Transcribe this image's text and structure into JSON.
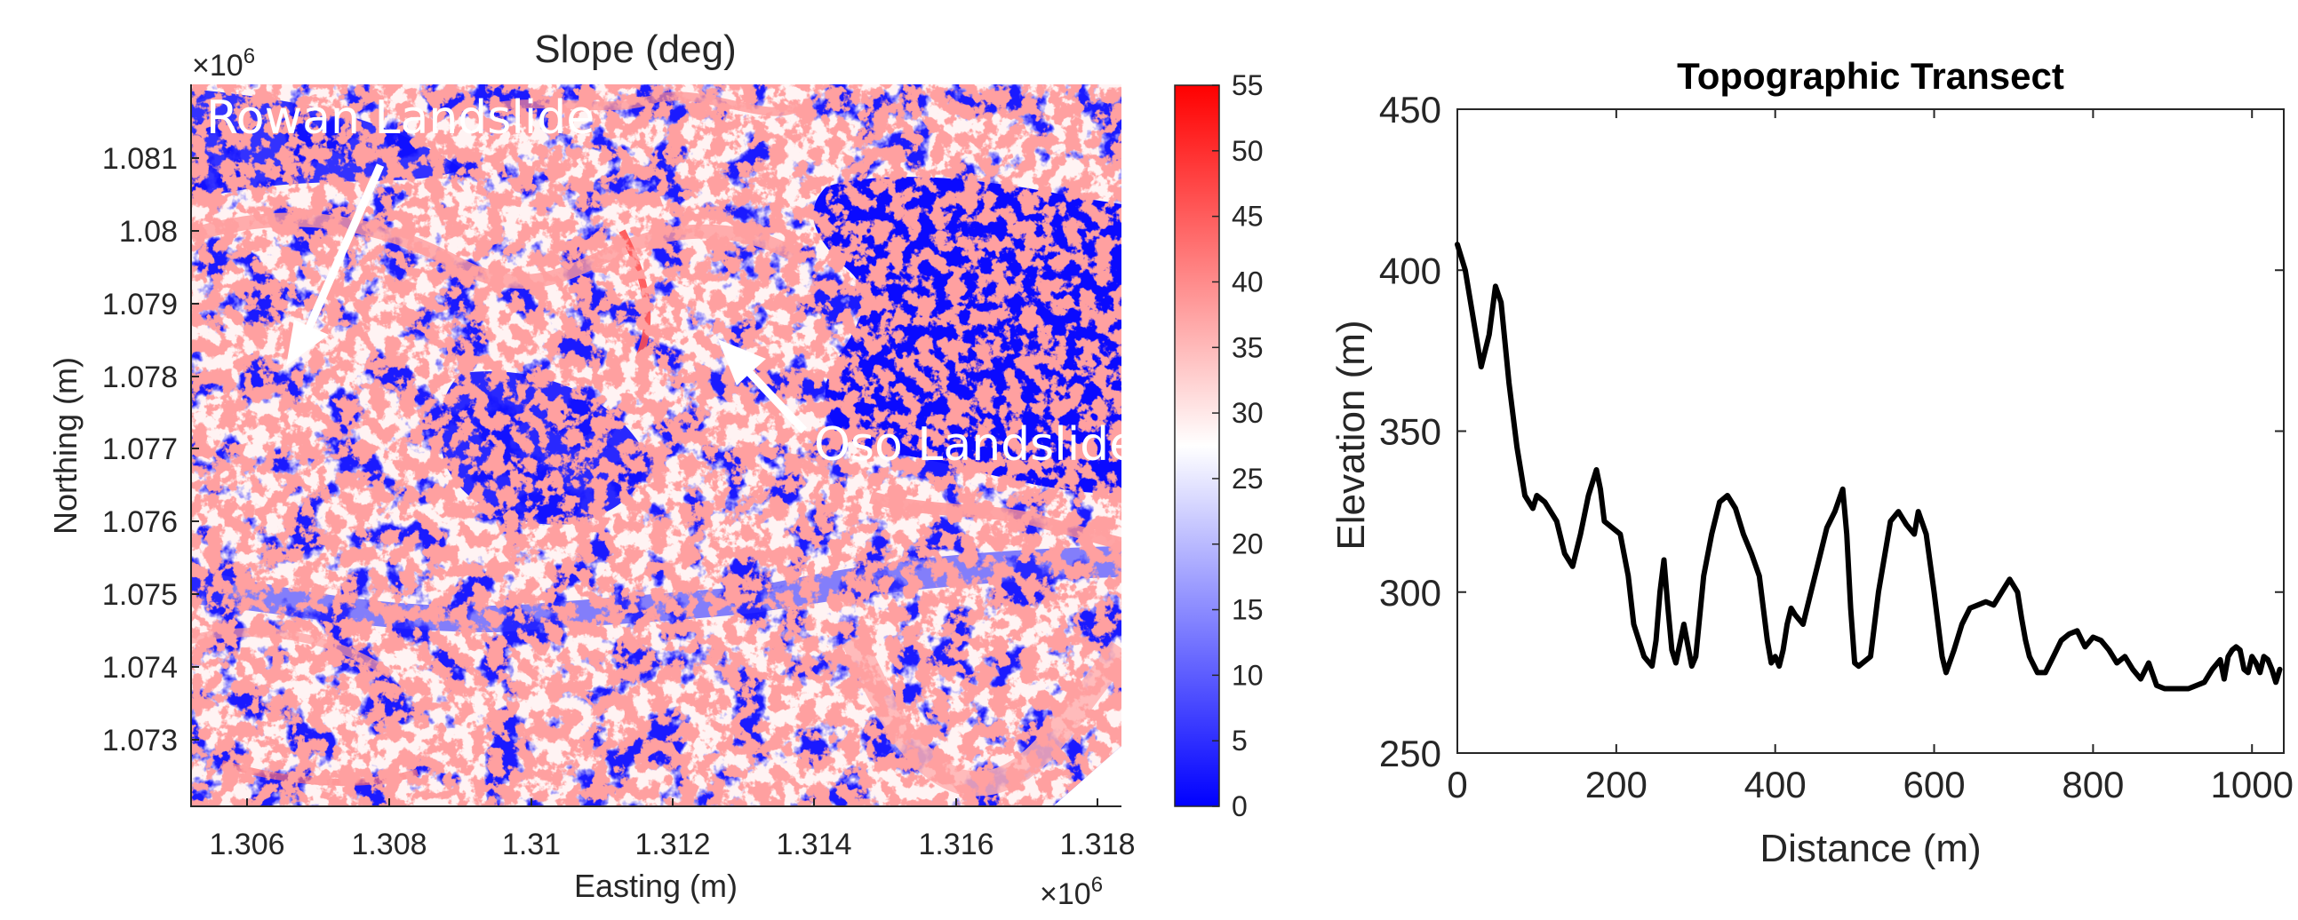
{
  "left_panel": {
    "title": "Slope (deg)",
    "exponent_y": "×10",
    "exponent_x": "×10",
    "exponent_power": "6",
    "annotations": [
      {
        "label": "Rowan Landslide"
      },
      {
        "label": "Oso Landslide"
      }
    ]
  },
  "colors": {
    "low": "#0000ff",
    "mid": "#ffffff",
    "high": "#ff0000",
    "line": "#000000"
  },
  "chart_data": [
    {
      "type": "heatmap",
      "title": "Slope (deg)",
      "xlabel": "Easting (m)",
      "ylabel": "Northing (m)",
      "x_ticks": [
        "1.306",
        "1.308",
        "1.31",
        "1.312",
        "1.314",
        "1.316",
        "1.318"
      ],
      "y_ticks": [
        "1.081",
        "1.08",
        "1.079",
        "1.078",
        "1.077",
        "1.076",
        "1.075",
        "1.074",
        "1.073"
      ],
      "colorbar": {
        "ticks": [
          "0",
          "5",
          "10",
          "15",
          "20",
          "25",
          "30",
          "35",
          "40",
          "45",
          "50",
          "55"
        ],
        "range": [
          0,
          55
        ],
        "colormap": "blue-white-red"
      }
    },
    {
      "type": "line",
      "title": "Topographic Transect",
      "xlabel": "Distance (m)",
      "ylabel": "Elevation (m)",
      "xlim": [
        0,
        1040
      ],
      "ylim": [
        250,
        450
      ],
      "x_ticks": [
        "0",
        "200",
        "400",
        "600",
        "800",
        "1000"
      ],
      "y_ticks": [
        "250",
        "300",
        "350",
        "400",
        "450"
      ],
      "series": [
        {
          "x": [
            0,
            10,
            20,
            30,
            40,
            48,
            55,
            65,
            75,
            85,
            95,
            100,
            110,
            125,
            135,
            145,
            155,
            165,
            175,
            180,
            185,
            195,
            205,
            215,
            222,
            235,
            245,
            250,
            255,
            260,
            265,
            270,
            275,
            285,
            295,
            300,
            310,
            320,
            330,
            340,
            350,
            360,
            370,
            380,
            385,
            390,
            395,
            400,
            405,
            410,
            415,
            420,
            425,
            435,
            445,
            455,
            465,
            475,
            485,
            490,
            495,
            500,
            505,
            510,
            520,
            530,
            545,
            555,
            565,
            575,
            580,
            590,
            600,
            610,
            615,
            625,
            635,
            645,
            655,
            665,
            675,
            685,
            695,
            705,
            710,
            715,
            720,
            730,
            740,
            750,
            760,
            770,
            780,
            790,
            800,
            810,
            820,
            830,
            840,
            850,
            860,
            870,
            880,
            890,
            900,
            920,
            940,
            950,
            960,
            965,
            970,
            975,
            980,
            985,
            990,
            995,
            1000,
            1005,
            1010,
            1015,
            1020,
            1025,
            1030,
            1035
          ],
          "y": [
            408,
            400,
            385,
            370,
            380,
            395,
            390,
            365,
            345,
            330,
            326,
            330,
            328,
            322,
            312,
            308,
            318,
            330,
            338,
            332,
            322,
            320,
            318,
            305,
            290,
            280,
            277,
            285,
            300,
            310,
            295,
            282,
            278,
            290,
            277,
            280,
            305,
            318,
            328,
            330,
            326,
            318,
            312,
            305,
            295,
            285,
            278,
            280,
            277,
            282,
            290,
            295,
            293,
            290,
            300,
            310,
            320,
            325,
            332,
            318,
            295,
            278,
            277,
            278,
            280,
            300,
            322,
            325,
            321,
            318,
            325,
            318,
            300,
            280,
            275,
            282,
            290,
            295,
            296,
            297,
            296,
            300,
            304,
            300,
            292,
            285,
            280,
            275,
            275,
            280,
            285,
            287,
            288,
            283,
            286,
            285,
            282,
            278,
            280,
            276,
            273,
            278,
            271,
            270,
            270,
            270,
            272,
            276,
            279,
            273,
            280,
            282,
            283,
            282,
            276,
            275,
            280,
            278,
            275,
            280,
            279,
            276,
            272,
            276
          ]
        }
      ]
    }
  ]
}
